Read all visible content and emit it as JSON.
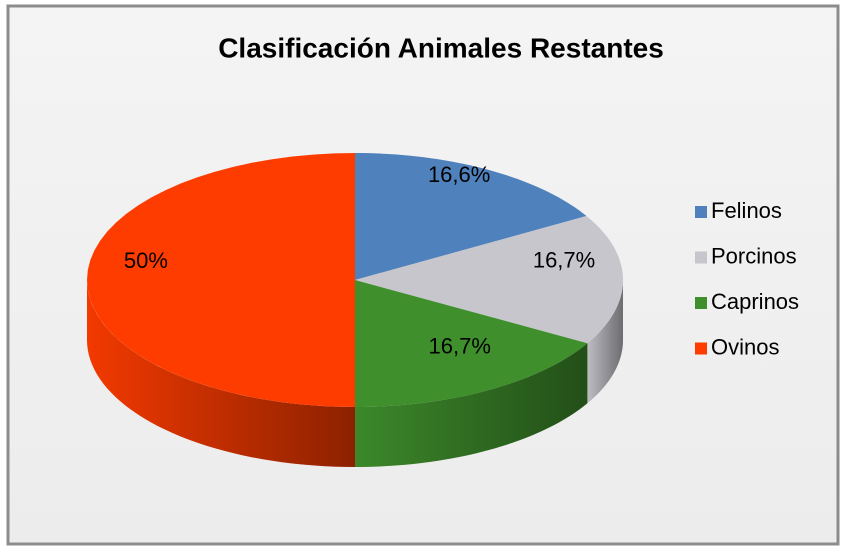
{
  "chart_data": {
    "type": "pie",
    "title": "Clasificación Animales Restantes",
    "categories": [
      "Felinos",
      "Porcinos",
      "Caprinos",
      "Ovinos"
    ],
    "values": [
      16.6,
      16.7,
      16.7,
      50
    ],
    "value_labels": [
      "16,6%",
      "16,7%",
      "16,7%",
      "50%"
    ],
    "colors": [
      "#4f81bd",
      "#c6c6cc",
      "#3f8f2c",
      "#ff3c00"
    ],
    "legend": "right"
  }
}
